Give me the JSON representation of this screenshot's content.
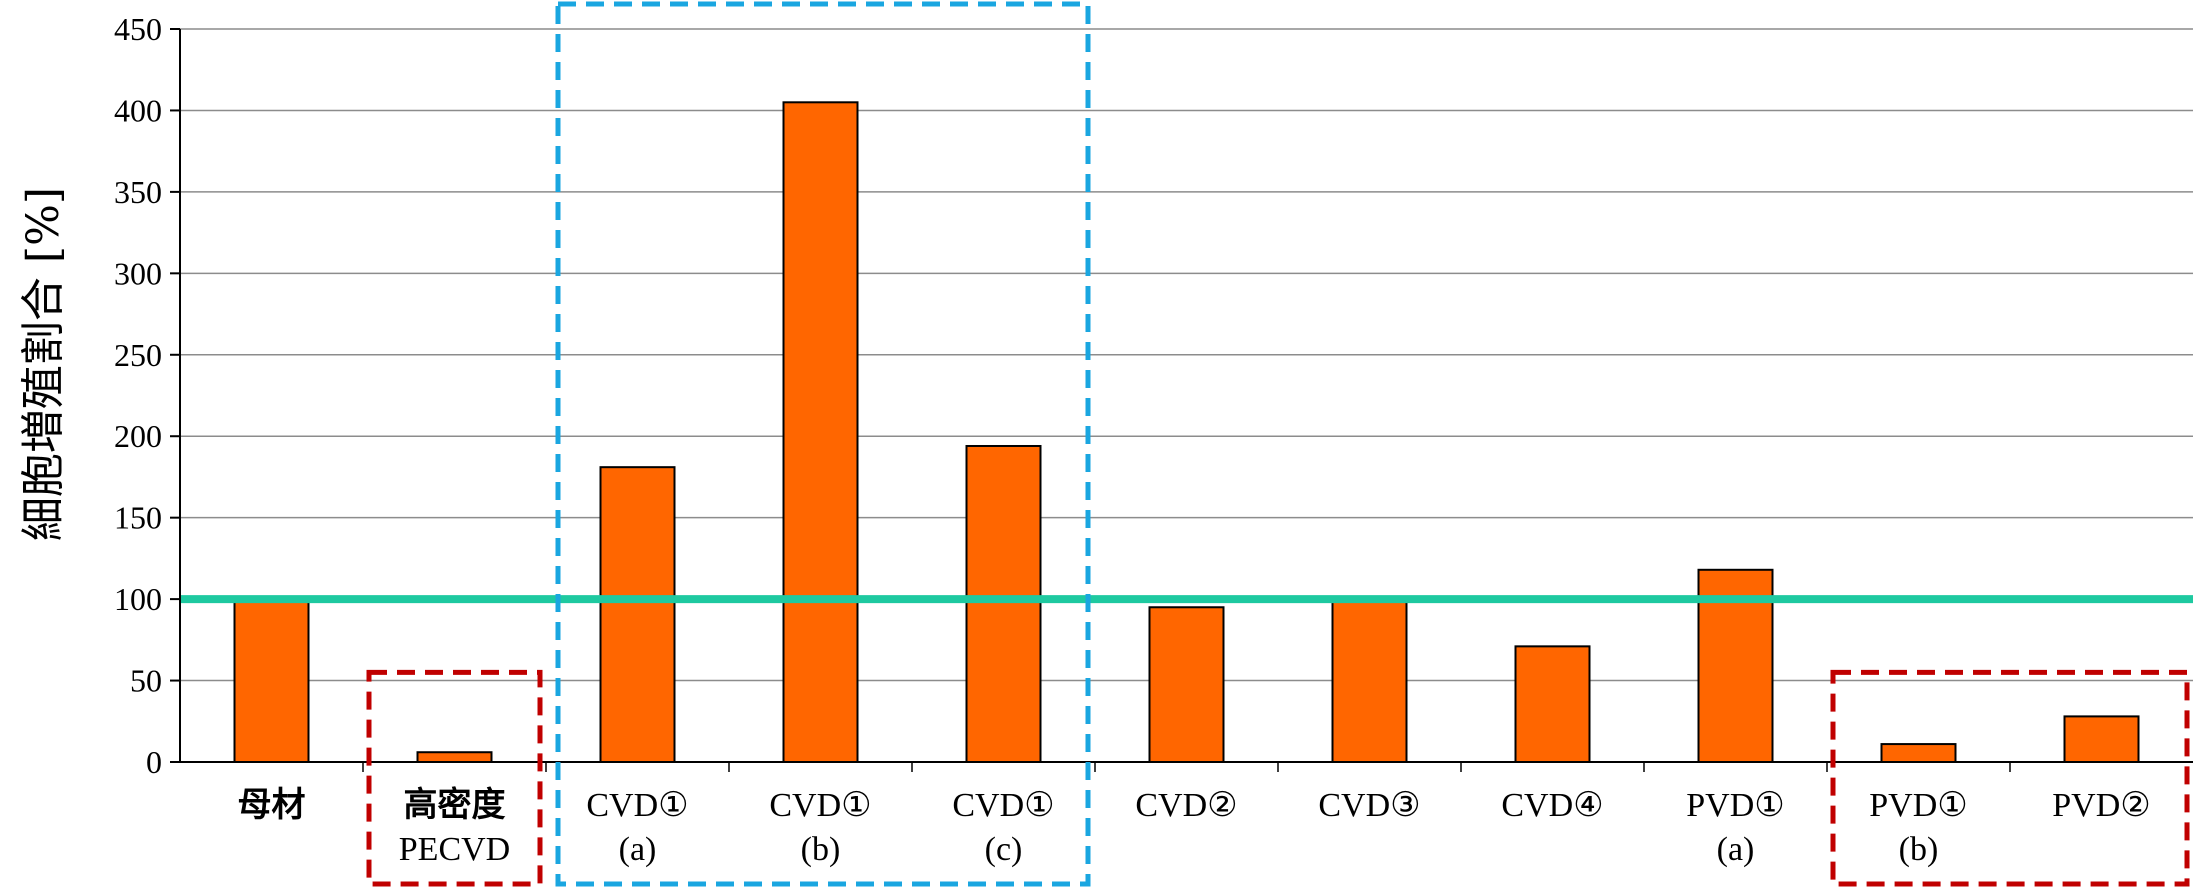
{
  "chart_data": {
    "type": "bar",
    "ylabel": "細胞増殖割合 [%]",
    "ylim": [
      0,
      450
    ],
    "yticks": [
      0,
      50,
      100,
      150,
      200,
      250,
      300,
      350,
      400,
      450
    ],
    "grid": true,
    "categories": [
      [
        "母材",
        ""
      ],
      [
        "高密度",
        "PECVD"
      ],
      [
        "CVD①",
        "(a)"
      ],
      [
        "CVD①",
        "(b)"
      ],
      [
        "CVD①",
        "(c)"
      ],
      [
        "CVD②",
        ""
      ],
      [
        "CVD③",
        ""
      ],
      [
        "CVD④",
        ""
      ],
      [
        "PVD①",
        "(a)"
      ],
      [
        "PVD①",
        "(b)"
      ],
      [
        "PVD②",
        ""
      ]
    ],
    "values": [
      100,
      6,
      181,
      405,
      194,
      95,
      100,
      71,
      118,
      11,
      28
    ],
    "reference_line": {
      "value": 100,
      "color": "#1ec9a0"
    },
    "bar_color": "#ff6600",
    "highlight_groups": [
      {
        "from": 2,
        "to": 4,
        "color": "#1aa6e0",
        "style": "dashed"
      },
      {
        "from": 1,
        "to": 1,
        "color": "#c00000",
        "style": "dashed"
      },
      {
        "from": 9,
        "to": 10,
        "color": "#c00000",
        "style": "dashed"
      }
    ]
  }
}
